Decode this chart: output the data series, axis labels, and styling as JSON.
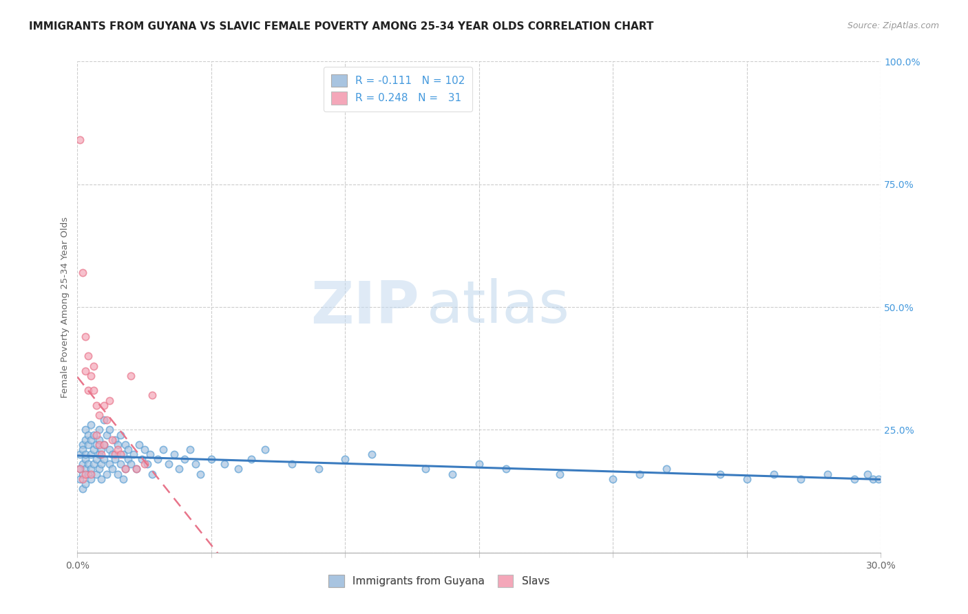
{
  "title": "IMMIGRANTS FROM GUYANA VS SLAVIC FEMALE POVERTY AMONG 25-34 YEAR OLDS CORRELATION CHART",
  "source": "Source: ZipAtlas.com",
  "ylabel": "Female Poverty Among 25-34 Year Olds",
  "xlim": [
    0.0,
    0.3
  ],
  "ylim": [
    0.0,
    1.0
  ],
  "xtick_positions": [
    0.0,
    0.05,
    0.1,
    0.15,
    0.2,
    0.25,
    0.3
  ],
  "xtick_labels": [
    "0.0%",
    "",
    "",
    "",
    "",
    "",
    "30.0%"
  ],
  "ytick_positions": [
    0.0,
    0.25,
    0.5,
    0.75,
    1.0
  ],
  "ytick_labels": [
    "",
    "25.0%",
    "50.0%",
    "75.0%",
    "100.0%"
  ],
  "guyana_color": "#a8c4e0",
  "slavs_color": "#f4a7b9",
  "guyana_edge_color": "#5a9fd4",
  "slavs_edge_color": "#e8748a",
  "guyana_line_color": "#3a7bbf",
  "slavs_line_color": "#e8748a",
  "right_ytick_color": "#4499dd",
  "R_guyana": -0.111,
  "N_guyana": 102,
  "R_slavs": 0.248,
  "N_slavs": 31,
  "guyana_scatter_x": [
    0.001,
    0.001,
    0.001,
    0.002,
    0.002,
    0.002,
    0.002,
    0.002,
    0.003,
    0.003,
    0.003,
    0.003,
    0.003,
    0.003,
    0.004,
    0.004,
    0.004,
    0.004,
    0.005,
    0.005,
    0.005,
    0.005,
    0.005,
    0.006,
    0.006,
    0.006,
    0.007,
    0.007,
    0.007,
    0.008,
    0.008,
    0.008,
    0.008,
    0.009,
    0.009,
    0.009,
    0.01,
    0.01,
    0.01,
    0.011,
    0.011,
    0.012,
    0.012,
    0.012,
    0.013,
    0.013,
    0.014,
    0.014,
    0.015,
    0.015,
    0.016,
    0.016,
    0.017,
    0.017,
    0.018,
    0.018,
    0.019,
    0.019,
    0.02,
    0.021,
    0.022,
    0.023,
    0.024,
    0.025,
    0.026,
    0.027,
    0.028,
    0.03,
    0.032,
    0.034,
    0.036,
    0.038,
    0.04,
    0.042,
    0.044,
    0.046,
    0.05,
    0.055,
    0.06,
    0.065,
    0.07,
    0.08,
    0.09,
    0.1,
    0.11,
    0.13,
    0.14,
    0.15,
    0.16,
    0.18,
    0.2,
    0.21,
    0.22,
    0.24,
    0.25,
    0.26,
    0.27,
    0.28,
    0.29,
    0.295,
    0.297,
    0.299
  ],
  "guyana_scatter_y": [
    0.17,
    0.2,
    0.15,
    0.22,
    0.18,
    0.16,
    0.21,
    0.13,
    0.19,
    0.23,
    0.17,
    0.25,
    0.14,
    0.2,
    0.18,
    0.22,
    0.16,
    0.24,
    0.2,
    0.17,
    0.23,
    0.15,
    0.26,
    0.21,
    0.18,
    0.24,
    0.19,
    0.22,
    0.16,
    0.25,
    0.2,
    0.17,
    0.23,
    0.18,
    0.21,
    0.15,
    0.22,
    0.27,
    0.19,
    0.24,
    0.16,
    0.21,
    0.18,
    0.25,
    0.2,
    0.17,
    0.23,
    0.19,
    0.22,
    0.16,
    0.24,
    0.18,
    0.2,
    0.15,
    0.22,
    0.17,
    0.19,
    0.21,
    0.18,
    0.2,
    0.17,
    0.22,
    0.19,
    0.21,
    0.18,
    0.2,
    0.16,
    0.19,
    0.21,
    0.18,
    0.2,
    0.17,
    0.19,
    0.21,
    0.18,
    0.16,
    0.19,
    0.18,
    0.17,
    0.19,
    0.21,
    0.18,
    0.17,
    0.19,
    0.2,
    0.17,
    0.16,
    0.18,
    0.17,
    0.16,
    0.15,
    0.16,
    0.17,
    0.16,
    0.15,
    0.16,
    0.15,
    0.16,
    0.15,
    0.16,
    0.15,
    0.15
  ],
  "slavs_scatter_x": [
    0.001,
    0.001,
    0.002,
    0.002,
    0.003,
    0.003,
    0.003,
    0.004,
    0.004,
    0.005,
    0.005,
    0.006,
    0.006,
    0.007,
    0.007,
    0.008,
    0.008,
    0.009,
    0.01,
    0.01,
    0.011,
    0.012,
    0.013,
    0.014,
    0.015,
    0.016,
    0.018,
    0.02,
    0.022,
    0.025,
    0.028
  ],
  "slavs_scatter_y": [
    0.84,
    0.17,
    0.57,
    0.15,
    0.44,
    0.37,
    0.16,
    0.4,
    0.33,
    0.36,
    0.16,
    0.38,
    0.33,
    0.3,
    0.24,
    0.28,
    0.22,
    0.2,
    0.3,
    0.22,
    0.27,
    0.31,
    0.23,
    0.2,
    0.21,
    0.2,
    0.17,
    0.36,
    0.17,
    0.18,
    0.32
  ],
  "watermark_zip": "ZIP",
  "watermark_atlas": "atlas",
  "marker_size": 55,
  "marker_linewidth": 1.2
}
